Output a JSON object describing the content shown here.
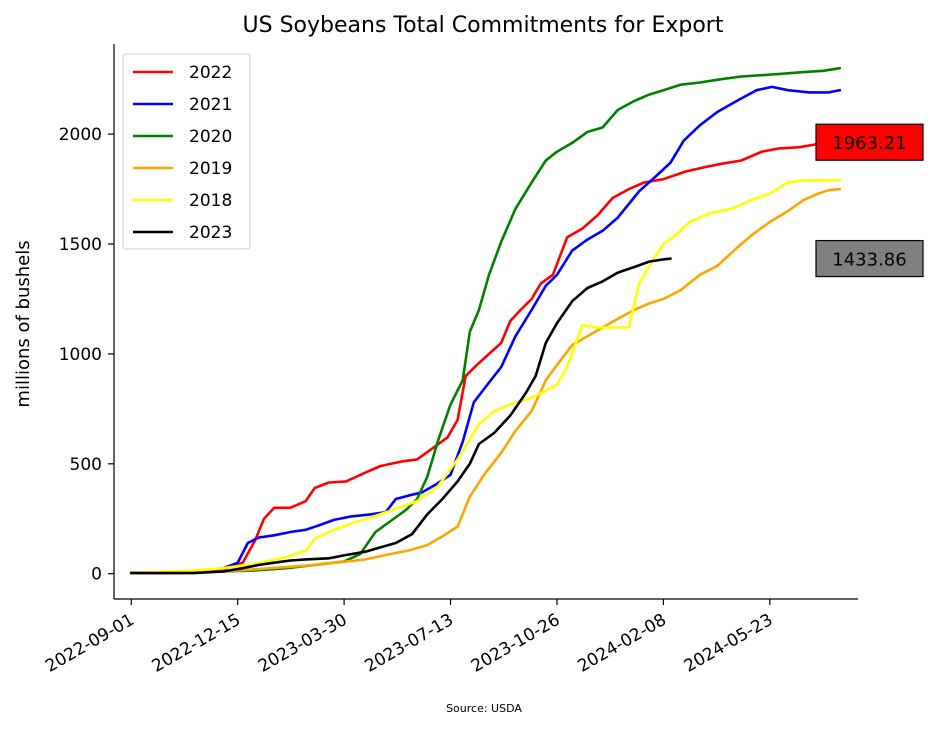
{
  "chart_data": {
    "type": "line",
    "title": "US Soybeans Total Commitments for Export",
    "ylabel": "millions of bushels",
    "xlabel": "",
    "source": "Source: USDA",
    "x_axis_type": "date",
    "xlim": [
      "2022-08-15",
      "2024-08-18"
    ],
    "ylim": [
      -115,
      2410
    ],
    "x_ticks": [
      "2022-09-01",
      "2022-12-15",
      "2023-03-30",
      "2023-07-13",
      "2023-10-26",
      "2024-02-08",
      "2024-05-23"
    ],
    "y_ticks": [
      0,
      500,
      1000,
      1500,
      2000
    ],
    "legend_position": "top-left",
    "grid": false,
    "series": [
      {
        "name": "2022",
        "color": "#ff0000",
        "points": [
          [
            "2022-09-01",
            5
          ],
          [
            "2022-10-01",
            5
          ],
          [
            "2022-11-01",
            8
          ],
          [
            "2022-12-01",
            20
          ],
          [
            "2022-12-20",
            50
          ],
          [
            "2023-01-01",
            150
          ],
          [
            "2023-01-10",
            250
          ],
          [
            "2023-01-20",
            300
          ],
          [
            "2023-02-05",
            300
          ],
          [
            "2023-02-20",
            330
          ],
          [
            "2023-03-01",
            390
          ],
          [
            "2023-03-15",
            415
          ],
          [
            "2023-04-01",
            420
          ],
          [
            "2023-04-20",
            460
          ],
          [
            "2023-05-05",
            490
          ],
          [
            "2023-05-25",
            510
          ],
          [
            "2023-06-10",
            520
          ],
          [
            "2023-06-25",
            570
          ],
          [
            "2023-07-10",
            620
          ],
          [
            "2023-07-20",
            700
          ],
          [
            "2023-07-28",
            900
          ],
          [
            "2023-08-08",
            950
          ],
          [
            "2023-08-20",
            1000
          ],
          [
            "2023-09-01",
            1050
          ],
          [
            "2023-09-10",
            1150
          ],
          [
            "2023-09-20",
            1200
          ],
          [
            "2023-10-01",
            1250
          ],
          [
            "2023-10-10",
            1320
          ],
          [
            "2023-10-22",
            1360
          ],
          [
            "2023-11-05",
            1530
          ],
          [
            "2023-11-20",
            1570
          ],
          [
            "2023-12-05",
            1630
          ],
          [
            "2023-12-20",
            1710
          ],
          [
            "2024-01-05",
            1750
          ],
          [
            "2024-01-20",
            1780
          ],
          [
            "2024-02-08",
            1795
          ],
          [
            "2024-03-01",
            1830
          ],
          [
            "2024-03-20",
            1850
          ],
          [
            "2024-04-05",
            1865
          ],
          [
            "2024-04-25",
            1880
          ],
          [
            "2024-05-15",
            1920
          ],
          [
            "2024-06-01",
            1935
          ],
          [
            "2024-06-20",
            1940
          ],
          [
            "2024-07-10",
            1955
          ],
          [
            "2024-07-31",
            1963.21
          ]
        ]
      },
      {
        "name": "2021",
        "color": "#0000ff",
        "points": [
          [
            "2022-09-01",
            5
          ],
          [
            "2022-10-01",
            5
          ],
          [
            "2022-11-01",
            10
          ],
          [
            "2022-12-01",
            25
          ],
          [
            "2022-12-15",
            50
          ],
          [
            "2022-12-25",
            140
          ],
          [
            "2023-01-05",
            165
          ],
          [
            "2023-01-20",
            175
          ],
          [
            "2023-02-05",
            190
          ],
          [
            "2023-02-20",
            200
          ],
          [
            "2023-03-05",
            220
          ],
          [
            "2023-03-20",
            245
          ],
          [
            "2023-04-05",
            260
          ],
          [
            "2023-04-25",
            270
          ],
          [
            "2023-05-10",
            280
          ],
          [
            "2023-05-20",
            340
          ],
          [
            "2023-06-01",
            355
          ],
          [
            "2023-06-15",
            370
          ],
          [
            "2023-06-30",
            410
          ],
          [
            "2023-07-13",
            450
          ],
          [
            "2023-07-25",
            600
          ],
          [
            "2023-08-05",
            780
          ],
          [
            "2023-08-20",
            870
          ],
          [
            "2023-09-01",
            940
          ],
          [
            "2023-09-15",
            1080
          ],
          [
            "2023-10-01",
            1200
          ],
          [
            "2023-10-15",
            1310
          ],
          [
            "2023-10-26",
            1360
          ],
          [
            "2023-11-10",
            1470
          ],
          [
            "2023-11-25",
            1520
          ],
          [
            "2023-12-10",
            1560
          ],
          [
            "2023-12-25",
            1620
          ],
          [
            "2024-01-15",
            1740
          ],
          [
            "2024-02-01",
            1810
          ],
          [
            "2024-02-15",
            1870
          ],
          [
            "2024-02-28",
            1970
          ],
          [
            "2024-03-15",
            2040
          ],
          [
            "2024-04-01",
            2100
          ],
          [
            "2024-04-20",
            2150
          ],
          [
            "2024-05-10",
            2200
          ],
          [
            "2024-05-25",
            2215
          ],
          [
            "2024-06-10",
            2200
          ],
          [
            "2024-07-01",
            2190
          ],
          [
            "2024-07-20",
            2190
          ],
          [
            "2024-07-31",
            2200
          ]
        ]
      },
      {
        "name": "2020",
        "color": "#008000",
        "points": [
          [
            "2022-09-01",
            5
          ],
          [
            "2022-10-01",
            3
          ],
          [
            "2022-11-01",
            5
          ],
          [
            "2022-12-01",
            10
          ],
          [
            "2023-01-01",
            15
          ],
          [
            "2023-02-01",
            25
          ],
          [
            "2023-03-01",
            40
          ],
          [
            "2023-03-30",
            55
          ],
          [
            "2023-04-15",
            90
          ],
          [
            "2023-04-30",
            190
          ],
          [
            "2023-05-15",
            240
          ],
          [
            "2023-05-30",
            290
          ],
          [
            "2023-06-10",
            340
          ],
          [
            "2023-06-20",
            440
          ],
          [
            "2023-07-01",
            610
          ],
          [
            "2023-07-13",
            770
          ],
          [
            "2023-07-25",
            880
          ],
          [
            "2023-08-01",
            1100
          ],
          [
            "2023-08-10",
            1200
          ],
          [
            "2023-08-20",
            1360
          ],
          [
            "2023-09-01",
            1510
          ],
          [
            "2023-09-15",
            1660
          ],
          [
            "2023-10-01",
            1780
          ],
          [
            "2023-10-15",
            1880
          ],
          [
            "2023-10-26",
            1920
          ],
          [
            "2023-11-10",
            1960
          ],
          [
            "2023-11-25",
            2010
          ],
          [
            "2023-12-10",
            2030
          ],
          [
            "2023-12-25",
            2110
          ],
          [
            "2024-01-10",
            2150
          ],
          [
            "2024-01-25",
            2180
          ],
          [
            "2024-02-08",
            2200
          ],
          [
            "2024-02-25",
            2225
          ],
          [
            "2024-03-15",
            2235
          ],
          [
            "2024-04-05",
            2250
          ],
          [
            "2024-04-25",
            2262
          ],
          [
            "2024-05-15",
            2268
          ],
          [
            "2024-06-05",
            2275
          ],
          [
            "2024-06-25",
            2282
          ],
          [
            "2024-07-15",
            2288
          ],
          [
            "2024-07-31",
            2300
          ]
        ]
      },
      {
        "name": "2019",
        "color": "#ffa500",
        "points": [
          [
            "2022-09-01",
            3
          ],
          [
            "2022-10-01",
            3
          ],
          [
            "2022-11-01",
            5
          ],
          [
            "2022-12-01",
            10
          ],
          [
            "2023-01-01",
            20
          ],
          [
            "2023-02-01",
            30
          ],
          [
            "2023-03-01",
            40
          ],
          [
            "2023-04-01",
            55
          ],
          [
            "2023-04-20",
            65
          ],
          [
            "2023-05-10",
            85
          ],
          [
            "2023-06-01",
            105
          ],
          [
            "2023-06-20",
            130
          ],
          [
            "2023-07-05",
            170
          ],
          [
            "2023-07-20",
            215
          ],
          [
            "2023-08-01",
            350
          ],
          [
            "2023-08-15",
            450
          ],
          [
            "2023-09-01",
            550
          ],
          [
            "2023-09-15",
            650
          ],
          [
            "2023-10-01",
            740
          ],
          [
            "2023-10-15",
            880
          ],
          [
            "2023-10-26",
            950
          ],
          [
            "2023-11-10",
            1040
          ],
          [
            "2023-11-25",
            1080
          ],
          [
            "2023-12-10",
            1120
          ],
          [
            "2023-12-25",
            1160
          ],
          [
            "2024-01-10",
            1200
          ],
          [
            "2024-01-25",
            1230
          ],
          [
            "2024-02-08",
            1250
          ],
          [
            "2024-02-25",
            1290
          ],
          [
            "2024-03-15",
            1360
          ],
          [
            "2024-04-01",
            1400
          ],
          [
            "2024-04-20",
            1480
          ],
          [
            "2024-05-05",
            1540
          ],
          [
            "2024-05-23",
            1600
          ],
          [
            "2024-06-10",
            1650
          ],
          [
            "2024-06-25",
            1700
          ],
          [
            "2024-07-10",
            1730
          ],
          [
            "2024-07-20",
            1745
          ],
          [
            "2024-07-31",
            1750
          ]
        ]
      },
      {
        "name": "2018",
        "color": "#ffff00",
        "points": [
          [
            "2022-09-01",
            5
          ],
          [
            "2022-10-01",
            8
          ],
          [
            "2022-11-01",
            15
          ],
          [
            "2022-12-01",
            25
          ],
          [
            "2023-01-01",
            45
          ],
          [
            "2023-02-01",
            75
          ],
          [
            "2023-02-20",
            105
          ],
          [
            "2023-03-01",
            160
          ],
          [
            "2023-03-20",
            200
          ],
          [
            "2023-04-10",
            235
          ],
          [
            "2023-05-01",
            265
          ],
          [
            "2023-05-20",
            295
          ],
          [
            "2023-06-10",
            330
          ],
          [
            "2023-07-01",
            400
          ],
          [
            "2023-07-20",
            520
          ],
          [
            "2023-08-10",
            680
          ],
          [
            "2023-08-25",
            740
          ],
          [
            "2023-09-10",
            770
          ],
          [
            "2023-10-01",
            800
          ],
          [
            "2023-10-26",
            860
          ],
          [
            "2023-11-05",
            940
          ],
          [
            "2023-11-20",
            1130
          ],
          [
            "2023-12-05",
            1120
          ],
          [
            "2023-12-20",
            1120
          ],
          [
            "2024-01-05",
            1120
          ],
          [
            "2024-01-15",
            1320
          ],
          [
            "2024-01-25",
            1400
          ],
          [
            "2024-02-08",
            1500
          ],
          [
            "2024-02-20",
            1540
          ],
          [
            "2024-03-05",
            1600
          ],
          [
            "2024-03-25",
            1640
          ],
          [
            "2024-04-15",
            1660
          ],
          [
            "2024-05-05",
            1700
          ],
          [
            "2024-05-23",
            1730
          ],
          [
            "2024-06-10",
            1780
          ],
          [
            "2024-06-25",
            1790
          ],
          [
            "2024-07-15",
            1790
          ],
          [
            "2024-07-31",
            1790
          ]
        ]
      },
      {
        "name": "2023",
        "color": "#000000",
        "points": [
          [
            "2022-09-01",
            3
          ],
          [
            "2022-10-01",
            3
          ],
          [
            "2022-11-01",
            3
          ],
          [
            "2022-12-01",
            10
          ],
          [
            "2022-12-20",
            25
          ],
          [
            "2023-01-05",
            40
          ],
          [
            "2023-01-20",
            50
          ],
          [
            "2023-02-05",
            60
          ],
          [
            "2023-02-20",
            65
          ],
          [
            "2023-03-15",
            70
          ],
          [
            "2023-04-01",
            85
          ],
          [
            "2023-04-20",
            100
          ],
          [
            "2023-05-05",
            120
          ],
          [
            "2023-05-20",
            140
          ],
          [
            "2023-06-05",
            180
          ],
          [
            "2023-06-20",
            270
          ],
          [
            "2023-07-05",
            340
          ],
          [
            "2023-07-20",
            420
          ],
          [
            "2023-08-01",
            500
          ],
          [
            "2023-08-10",
            590
          ],
          [
            "2023-08-25",
            640
          ],
          [
            "2023-09-10",
            720
          ],
          [
            "2023-09-25",
            820
          ],
          [
            "2023-10-05",
            900
          ],
          [
            "2023-10-15",
            1050
          ],
          [
            "2023-10-26",
            1140
          ],
          [
            "2023-11-10",
            1240
          ],
          [
            "2023-11-25",
            1300
          ],
          [
            "2023-12-10",
            1330
          ],
          [
            "2023-12-25",
            1370
          ],
          [
            "2024-01-10",
            1395
          ],
          [
            "2024-01-25",
            1420
          ],
          [
            "2024-02-08",
            1430
          ],
          [
            "2024-02-15",
            1433.86
          ]
        ]
      }
    ],
    "end_labels": [
      {
        "text": "1963.21",
        "value": 1963.21,
        "fill": "#ff0000"
      },
      {
        "text": "1433.86",
        "value": 1433.86,
        "fill": "#808080"
      }
    ]
  }
}
